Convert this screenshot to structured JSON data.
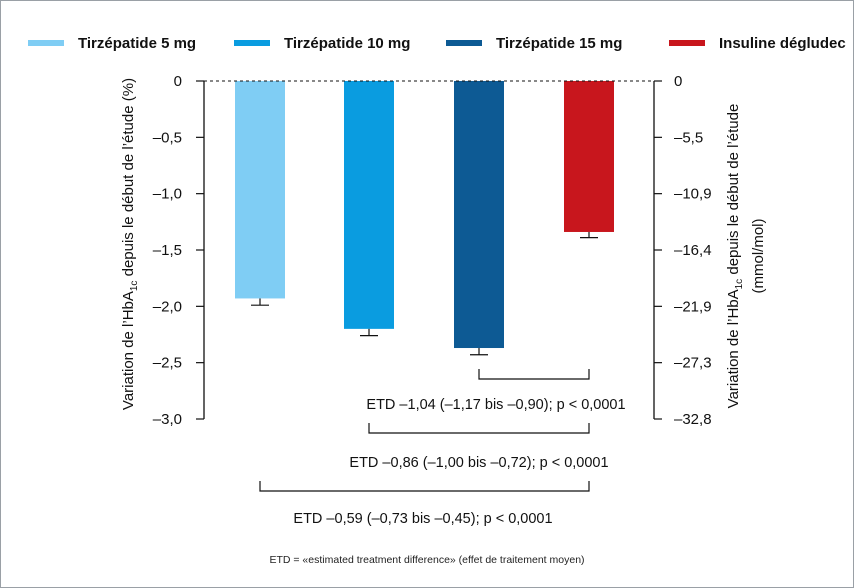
{
  "legend": [
    {
      "label": "Tirzépatide 5 mg",
      "color": "#7fcdf4"
    },
    {
      "label": "Tirzépatide 10 mg",
      "color": "#0a9ce0"
    },
    {
      "label": "Tirzépatide 15 mg",
      "color": "#0d5a94"
    },
    {
      "label": "Insuline dégludec",
      "color": "#c8161d"
    }
  ],
  "chart_data": {
    "type": "bar",
    "categories": [
      "Tirzépatide 5 mg",
      "Tirzépatide 10 mg",
      "Tirzépatide 15 mg",
      "Insuline dégludec"
    ],
    "values": [
      -1.93,
      -2.2,
      -2.37,
      -1.34
    ],
    "errors": [
      0.06,
      0.06,
      0.06,
      0.05
    ],
    "colors": [
      "#7fcdf4",
      "#0a9ce0",
      "#0d5a94",
      "#c8161d"
    ],
    "ylim": [
      -3.0,
      0
    ],
    "yticks_left": [
      "0",
      "–0,5",
      "–1,0",
      "–1,5",
      "–2,0",
      "–2,5",
      "–3,0"
    ],
    "yticks_right": [
      "0",
      "–5,5",
      "–10,9",
      "–16,4",
      "–21,9",
      "–27,3",
      "–32,8"
    ],
    "ylabel_left_pre": "Variation de l’HbA",
    "ylabel_left_sub": "1c",
    "ylabel_left_post": " depuis le début de l’étude (%)",
    "ylabel_right_pre": "Variation de l’HbA",
    "ylabel_right_sub": "1c",
    "ylabel_right_post": " depuis le début de l’étude",
    "ylabel_right_line2": "(mmol/mol)",
    "comparisons": [
      {
        "from": 2,
        "to": 3,
        "label": "ETD –1,04 (–1,17 bis –0,90); p < 0,0001"
      },
      {
        "from": 1,
        "to": 3,
        "label": "ETD –0,86 (–1,00 bis –0,72); p < 0,0001"
      },
      {
        "from": 0,
        "to": 3,
        "label": "ETD –0,59 (–0,73 bis –0,45); p < 0,0001"
      }
    ]
  },
  "footnote": "ETD = «estimated treatment difference» (effet de traitement moyen)"
}
